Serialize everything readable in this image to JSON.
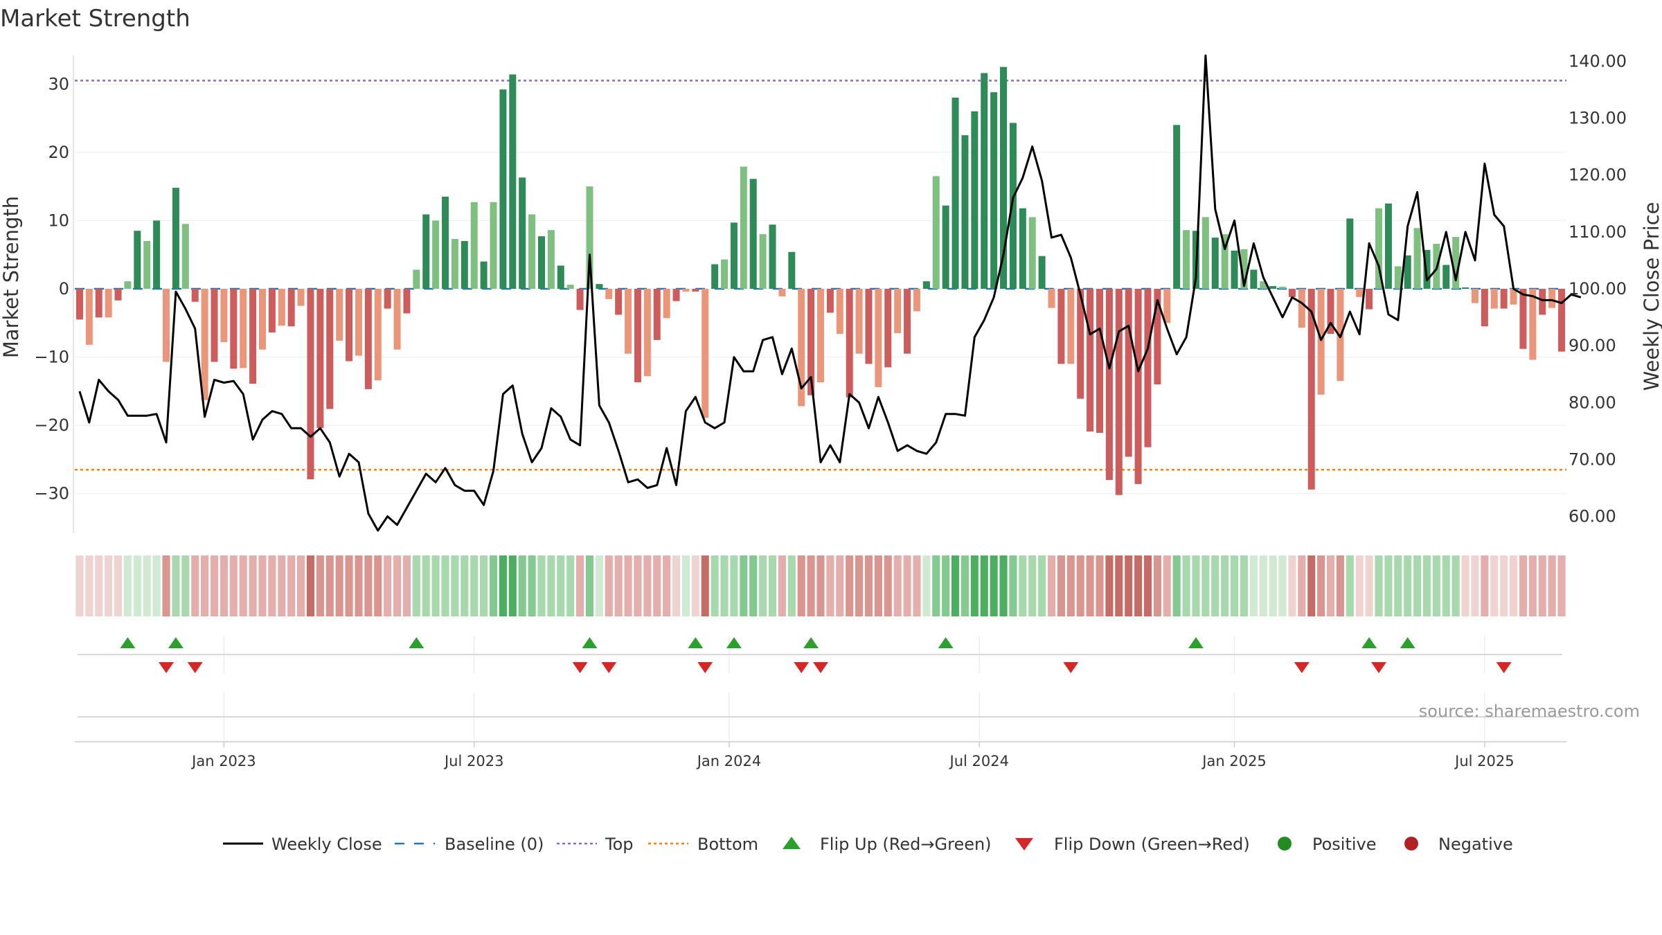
{
  "chart_data": {
    "type": "bar+line",
    "title": "Market Strength",
    "ylabel_left": "Market Strength",
    "ylabel_right": "Weekly Close Price",
    "yticks_left": [
      "30",
      "20",
      "10",
      "0",
      "−10",
      "−20",
      "−30"
    ],
    "yticks_right": [
      "140.00",
      "130.00",
      "120.00",
      "110.00",
      "100.00",
      "90.00",
      "80.00",
      "70.00",
      "60.00"
    ],
    "ylim_left": [
      -35,
      35
    ],
    "ylim_right": [
      58,
      142
    ],
    "xtick_labels": [
      "Jan 2023",
      "Jul 2023",
      "Jan 2024",
      "Jul 2024",
      "Jan 2025",
      "Jul 2025"
    ],
    "xtick_weeks": [
      15,
      41,
      67.5,
      93.5,
      120,
      146
    ],
    "top_level": 30.5,
    "bottom_level": -26.5,
    "baseline": 0,
    "strength": [
      -4.5,
      -8.2,
      -4.2,
      -4.2,
      -1.7,
      1.1,
      8.5,
      7.0,
      10.0,
      -10.7,
      14.8,
      9.5,
      -1.9,
      -16.3,
      -10.7,
      -7.8,
      -11.7,
      -11.6,
      -13.9,
      -8.9,
      -6.4,
      -5.4,
      -5.5,
      -2.5,
      -27.9,
      -20.4,
      -17.6,
      -7.6,
      -10.6,
      -9.8,
      -14.7,
      -13.4,
      -2.9,
      -8.9,
      -3.6,
      2.8,
      10.9,
      10.0,
      13.5,
      7.3,
      7.0,
      12.7,
      4.0,
      12.7,
      29.2,
      31.4,
      16.3,
      10.9,
      7.7,
      8.6,
      3.4,
      0.6,
      -3.1,
      15.0,
      0.7,
      -1.5,
      -3.8,
      -9.5,
      -13.7,
      -12.8,
      -7.5,
      -4.3,
      -1.8,
      -0.4,
      -0.4,
      -18.9,
      3.6,
      4.3,
      9.7,
      17.9,
      16.1,
      8.0,
      9.4,
      -1.1,
      5.4,
      -17.2,
      -15.6,
      -13.7,
      -3.5,
      -6.6,
      -15.9,
      -9.5,
      -11.0,
      -14.4,
      -11.5,
      -6.5,
      -9.5,
      -3.3,
      1.1,
      16.5,
      12.2,
      28.0,
      22.5,
      26.0,
      31.6,
      28.8,
      32.5,
      24.3,
      11.8,
      10.5,
      4.8,
      -2.8,
      -11.0,
      -11.0,
      -16.1,
      -20.9,
      -21.1,
      -28.0,
      -30.2,
      -24.6,
      -28.6,
      -23.2,
      -14.0,
      -5.0,
      24.0,
      8.6,
      8.5,
      10.5,
      7.5,
      8.0,
      5.6,
      5.8,
      2.8,
      1.1,
      0.4,
      0.3,
      -1.2,
      -5.7,
      -29.4,
      -15.5,
      -6.6,
      -13.5,
      10.3,
      -1.2,
      -3.0,
      11.8,
      12.5,
      3.3,
      4.9,
      8.9,
      5.7,
      6.6,
      3.5,
      7.6,
      0.2,
      -2.1,
      -5.5,
      -2.9,
      -2.9,
      -2.3,
      -8.8,
      -10.4,
      -3.8,
      -2.8,
      -9.2
    ],
    "weekly_close": [
      82.0,
      76.5,
      84.0,
      82.0,
      80.5,
      77.7,
      77.7,
      77.7,
      78.0,
      73.0,
      99.5,
      96.5,
      93.0,
      77.5,
      84.0,
      83.5,
      83.8,
      81.5,
      73.5,
      77.0,
      78.5,
      78.0,
      75.5,
      75.5,
      74.0,
      75.5,
      73.0,
      67.0,
      71.0,
      69.5,
      60.5,
      57.5,
      60.0,
      58.5,
      61.5,
      64.5,
      67.5,
      66.0,
      68.5,
      65.5,
      64.5,
      64.5,
      62.0,
      68.0,
      81.5,
      83.0,
      74.5,
      69.5,
      72.0,
      79.0,
      77.5,
      73.5,
      72.5,
      106.0,
      79.5,
      76.5,
      71.5,
      66.0,
      66.5,
      65.0,
      65.5,
      72.0,
      65.5,
      78.5,
      81.0,
      76.5,
      75.5,
      76.5,
      88.0,
      85.5,
      85.5,
      91.0,
      91.5,
      85.0,
      89.5,
      82.5,
      84.5,
      69.5,
      72.5,
      69.5,
      81.5,
      80.0,
      75.5,
      81.0,
      76.5,
      71.5,
      72.5,
      71.5,
      71.0,
      73.0,
      78.0,
      78.0,
      77.7,
      91.5,
      94.5,
      98.5,
      106.0,
      116.0,
      119.5,
      125.0,
      119.0,
      109.0,
      109.5,
      105.5,
      99.0,
      92.0,
      93.0,
      86.0,
      92.5,
      93.5,
      85.5,
      89.5,
      98.0,
      93.0,
      88.5,
      91.5,
      102.0,
      141.0,
      114.0,
      107.0,
      112.0,
      100.5,
      108.0,
      102.0,
      98.5,
      95.0,
      98.5,
      97.5,
      96.0,
      91.0,
      94.0,
      91.5,
      96.0,
      92.0,
      108.0,
      104.0,
      95.5,
      94.5,
      111.0,
      117.0,
      101.5,
      103.5,
      110.0,
      101.5,
      110.0,
      105.0,
      122.0,
      113.0,
      111.0,
      100.0,
      99.0,
      98.7,
      98.0,
      98.0,
      97.5,
      99.0,
      98.5
    ],
    "strip_values": [
      -1,
      -1,
      -1,
      -1,
      -1,
      1,
      1,
      1,
      1,
      -3,
      2,
      2,
      -2,
      -2,
      -2,
      -2,
      -2,
      -2,
      -2,
      -2,
      -2,
      -2,
      -2,
      -2,
      -4,
      -3,
      -3,
      -3,
      -3,
      -3,
      -3,
      -3,
      -2,
      -2,
      -2,
      2,
      2,
      2,
      2,
      2,
      2,
      2,
      2,
      3,
      4,
      4,
      3,
      3,
      2,
      2,
      2,
      2,
      -2,
      3,
      1,
      -2,
      -2,
      -2,
      -2,
      -2,
      -2,
      -2,
      -1,
      1,
      -1,
      -4,
      2,
      2,
      2,
      3,
      3,
      2,
      2,
      -2,
      2,
      -3,
      -3,
      -3,
      -2,
      -2,
      -3,
      -3,
      -3,
      -3,
      -3,
      -2,
      -2,
      -2,
      1,
      3,
      3,
      4,
      3,
      4,
      4,
      4,
      4,
      3,
      2,
      2,
      2,
      -2,
      -3,
      -3,
      -3,
      -3,
      -3,
      -4,
      -4,
      -4,
      -4,
      -4,
      -3,
      -2,
      3,
      2,
      2,
      2,
      2,
      2,
      2,
      2,
      1,
      1,
      1,
      1,
      -1,
      -2,
      -4,
      -3,
      -2,
      -3,
      2,
      -1,
      -1,
      2,
      2,
      2,
      2,
      2,
      2,
      2,
      2,
      2,
      -1,
      -1,
      -2,
      -1,
      -1,
      -1,
      -2,
      -2,
      -2,
      -2,
      -2
    ],
    "flip_up_weeks": [
      5,
      10,
      35,
      53,
      64,
      68,
      76,
      90,
      116,
      134,
      138
    ],
    "flip_down_weeks": [
      9,
      12,
      52,
      55,
      65,
      75,
      77,
      103,
      127,
      135,
      148
    ],
    "legend": [
      "Weekly Close",
      "Baseline (0)",
      "Top",
      "Bottom",
      "Flip Up (Red→Green)",
      "Flip Down (Green→Red)",
      "Positive",
      "Negative"
    ],
    "source": "source: sharemaestro.com",
    "colors": {
      "pos_strong": "#2e8b57",
      "pos_light": "#7fbf7f",
      "neg_strong": "#cd5c5c",
      "neg_light": "#e9967a",
      "line": "#000000",
      "baseline": "#1f77b4",
      "top": "#9467bd",
      "bottom": "#ff7f0e",
      "flip_up": "#2ca02c",
      "flip_down": "#d62728",
      "positive_dot": "#228b22",
      "negative_dot": "#b22222"
    }
  }
}
